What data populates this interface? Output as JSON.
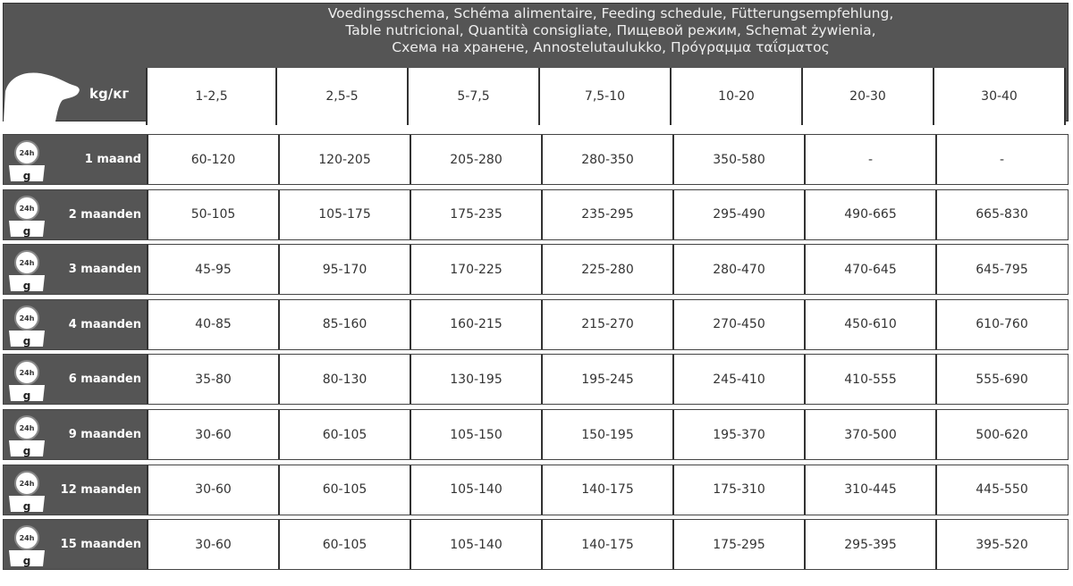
{
  "title_lines": [
    "Voedingsschema, Schéma alimentaire, Feeding schedule, Fütterungsempfehlung,",
    "Table nutricional, Quantità consigliate, Пищевой режим, Schemat żywienia,",
    "Схема на хранене, Annostelutaulukko, Πρόγραμμα ταΐσματος"
  ],
  "weight_label": "kg/кг",
  "weights": [
    "1-2,5",
    "2,5-5",
    "5-7,5",
    "7,5-10",
    "10-20",
    "20-30",
    "30-40"
  ],
  "icon_labels": {
    "clock": "24h",
    "unit": "g"
  },
  "rows": [
    {
      "age": "1 maand",
      "values": [
        "60-120",
        "120-205",
        "205-280",
        "280-350",
        "350-580",
        "-",
        "-"
      ]
    },
    {
      "age": "2 maanden",
      "values": [
        "50-105",
        "105-175",
        "175-235",
        "235-295",
        "295-490",
        "490-665",
        "665-830"
      ]
    },
    {
      "age": "3 maanden",
      "values": [
        "45-95",
        "95-170",
        "170-225",
        "225-280",
        "280-470",
        "470-645",
        "645-795"
      ]
    },
    {
      "age": "4 maanden",
      "values": [
        "40-85",
        "85-160",
        "160-215",
        "215-270",
        "270-450",
        "450-610",
        "610-760"
      ]
    },
    {
      "age": "6 maanden",
      "values": [
        "35-80",
        "80-130",
        "130-195",
        "195-245",
        "245-410",
        "410-555",
        "555-690"
      ]
    },
    {
      "age": "9 maanden",
      "values": [
        "30-60",
        "60-105",
        "105-150",
        "150-195",
        "195-370",
        "370-500",
        "500-620"
      ]
    },
    {
      "age": "12 maanden",
      "values": [
        "30-60",
        "60-105",
        "105-140",
        "140-175",
        "175-310",
        "310-445",
        "445-550"
      ]
    },
    {
      "age": "15 maanden",
      "values": [
        "30-60",
        "60-105",
        "105-140",
        "140-175",
        "175-295",
        "295-395",
        "395-520"
      ]
    }
  ]
}
